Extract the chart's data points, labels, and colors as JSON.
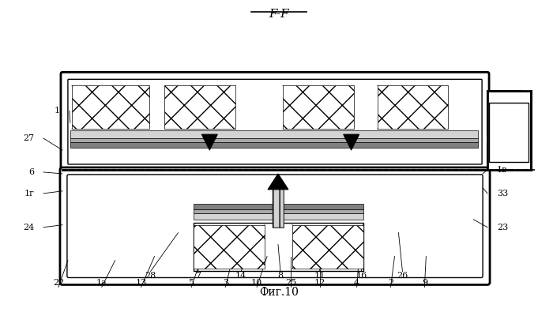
{
  "title": "F-F",
  "caption": "Фиг.10",
  "bg_color": "#ffffff",
  "fig_width": 7.0,
  "fig_height": 4.0,
  "dpi": 100,
  "top_labels": [
    [
      "22",
      73,
      370,
      85,
      330
    ],
    [
      "1а",
      128,
      370,
      145,
      330
    ],
    [
      "13",
      178,
      370,
      195,
      325
    ],
    [
      "5",
      242,
      370,
      255,
      325
    ],
    [
      "3",
      285,
      370,
      295,
      325
    ],
    [
      "10",
      325,
      370,
      338,
      325
    ],
    [
      "25",
      368,
      370,
      368,
      325
    ],
    [
      "12",
      405,
      370,
      405,
      325
    ],
    [
      "4",
      452,
      370,
      455,
      325
    ],
    [
      "2",
      495,
      370,
      500,
      325
    ],
    [
      "9",
      538,
      370,
      540,
      325
    ]
  ],
  "left_labels": [
    [
      "24",
      42,
      288,
      78,
      285
    ],
    [
      "1г",
      42,
      245,
      78,
      242
    ],
    [
      "6",
      42,
      218,
      78,
      220
    ],
    [
      "27",
      42,
      175,
      78,
      190
    ],
    [
      "1",
      75,
      140,
      88,
      155
    ]
  ],
  "bot_labels": [
    [
      "28",
      190,
      338,
      225,
      295
    ],
    [
      "7",
      250,
      338,
      268,
      295
    ],
    [
      "14",
      305,
      338,
      318,
      310
    ],
    [
      "8",
      355,
      338,
      352,
      310
    ],
    [
      "11",
      405,
      338,
      400,
      295
    ],
    [
      "16",
      458,
      338,
      455,
      295
    ],
    [
      "26",
      510,
      338,
      505,
      295
    ]
  ],
  "right_labels": [
    [
      "23",
      630,
      288,
      600,
      278
    ],
    [
      "33",
      630,
      245,
      612,
      238
    ],
    [
      "1в",
      630,
      215,
      612,
      220
    ]
  ]
}
